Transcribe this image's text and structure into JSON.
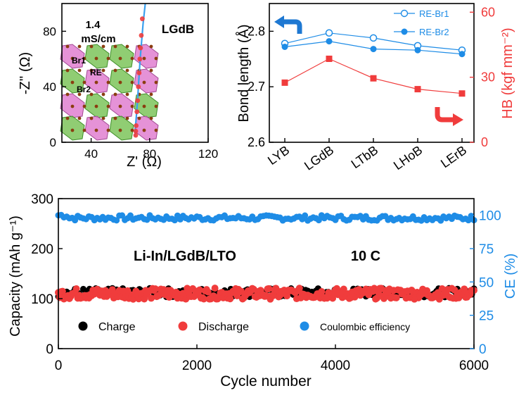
{
  "colors": {
    "black": "#000000",
    "red": "#f03c3c",
    "blue": "#1e8ce6",
    "line_blue": "#3aa0ee",
    "green": "#7cc45a",
    "pink": "#e07fd0",
    "brown": "#8a3d10"
  },
  "chart_data": [
    {
      "type": "scatter",
      "ylabel": "-Z'' (Ω)",
      "xlabel": "Z' (Ω)",
      "xlim": [
        20,
        120
      ],
      "ylim": [
        0,
        100
      ],
      "xticks": [
        "40",
        "80",
        "120"
      ],
      "yticks": [
        "0",
        "40",
        "80"
      ],
      "annotations": {
        "conductivity_value": "1.4",
        "conductivity_unit": "mS/cm",
        "sample": "LGdB",
        "sites": [
          "Br1",
          "RE",
          "Br2"
        ]
      },
      "points": [
        [
          70.5,
          5
        ],
        [
          70.5,
          8
        ],
        [
          70.8,
          12
        ],
        [
          71.3,
          22
        ],
        [
          71.8,
          30
        ],
        [
          72.3,
          40
        ],
        [
          72.8,
          50
        ],
        [
          73.3,
          60
        ],
        [
          73.8,
          68
        ],
        [
          74.3,
          77
        ],
        [
          75.0,
          89
        ]
      ],
      "fit_line": [
        [
          70.0,
          4
        ],
        [
          70.2,
          10
        ],
        [
          71.0,
          20
        ],
        [
          72.0,
          35
        ],
        [
          73.5,
          60
        ],
        [
          75.5,
          85
        ],
        [
          77.0,
          100
        ]
      ]
    },
    {
      "type": "line",
      "categories": [
        "LYB",
        "LGdB",
        "LTbB",
        "LHoB",
        "LErB"
      ],
      "ylabel": "Bond length (Å)",
      "y2label": "HB (kgf mm⁻²)",
      "ylim": [
        2.6,
        2.85
      ],
      "y2lim": [
        0,
        64
      ],
      "yticks": [
        "2.6",
        "2.7",
        "2.8"
      ],
      "y2ticks": [
        "0",
        "30",
        "60"
      ],
      "legend_position": "top-right",
      "series": [
        {
          "name": "RE-Br1",
          "axis": "left",
          "marker": "open-circle",
          "values": [
            2.778,
            2.797,
            2.788,
            2.774,
            2.766
          ]
        },
        {
          "name": "RE-Br2",
          "axis": "left",
          "marker": "filled-circle",
          "values": [
            2.772,
            2.782,
            2.768,
            2.766,
            2.759
          ]
        },
        {
          "name": "HB",
          "axis": "right",
          "marker": "square",
          "values": [
            27.5,
            38.5,
            29.5,
            24.5,
            22.5
          ]
        }
      ]
    },
    {
      "type": "scatter",
      "xlabel": "Cycle number",
      "ylabel": "Capacity (mAh g⁻¹)",
      "y2label": "CE (%)",
      "xlim": [
        0,
        6000
      ],
      "ylim": [
        0,
        300
      ],
      "y2lim": [
        0,
        112.5
      ],
      "xticks": [
        "0",
        "2000",
        "4000",
        "6000"
      ],
      "yticks": [
        "0",
        "100",
        "200",
        "300"
      ],
      "y2ticks": [
        "0",
        "25",
        "50",
        "75",
        "100"
      ],
      "annotation_cell": "Li-In/LGdB/LTO",
      "annotation_rate": "10 C",
      "legend_position": "bottom",
      "series": [
        {
          "name": "Charge",
          "axis": "left",
          "mean": 112
        },
        {
          "name": "Discharge",
          "axis": "left",
          "mean": 110
        },
        {
          "name": "Coulombic efficiency",
          "axis": "right",
          "mean": 98
        }
      ]
    }
  ]
}
